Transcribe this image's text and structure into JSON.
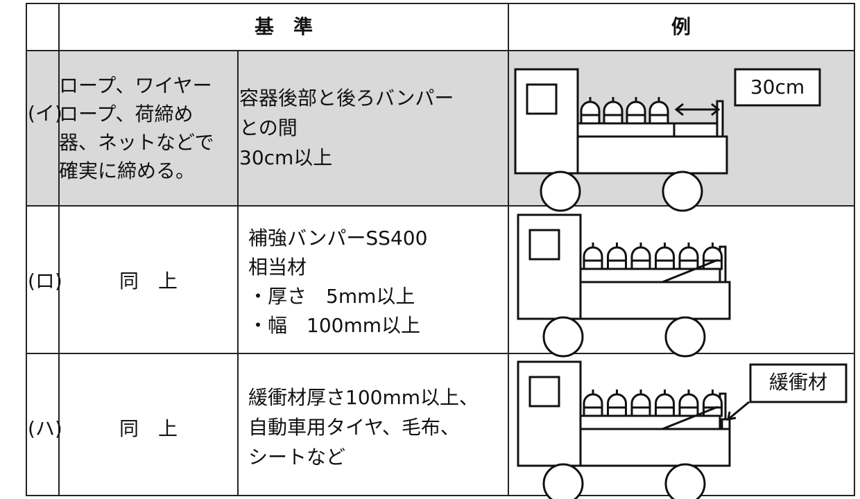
{
  "header": {
    "criteria": "基　準",
    "example": "例"
  },
  "rows": [
    {
      "label": "(イ)",
      "method": [
        "ロープ、ワイヤー",
        "ロープ、荷締め",
        "器、ネットなどで",
        "確実に締める。"
      ],
      "standard": [
        "容器後部と後ろバンパー",
        "との間",
        "30cm以上"
      ],
      "example_note": "30cm"
    },
    {
      "label": "(ロ)",
      "method": [
        "同　上"
      ],
      "standard": [
        "補強バンパーSS400",
        "相当材",
        "・厚さ　5mm以上",
        "・幅　100mm以上"
      ]
    },
    {
      "label": "(ハ)",
      "method": [
        "同　上"
      ],
      "standard": [
        "緩衝材厚さ100mm以上、",
        "自動車用タイヤ、毛布、",
        "シートなど"
      ],
      "example_note": "緩衝材"
    }
  ]
}
